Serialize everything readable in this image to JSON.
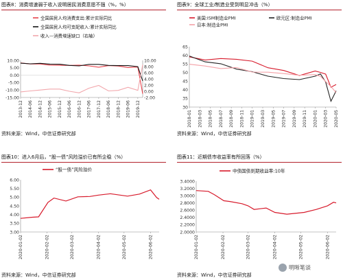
{
  "figures": [
    {
      "title": "图表8：消费增速弱于收入说明居民消费意愿不强（%，%）",
      "source": "资料来源：Wind，中信证券研究部"
    },
    {
      "title": "图表9：全球工业/制造业受到明显冲击（%）",
      "source": "资料来源：Wind，中信证券研究部"
    },
    {
      "title": "图表10：进入6月后，“股一债”风险溢价已有所企稳（%）",
      "source": "资料来源：Wind，中信证券研究部"
    },
    {
      "title": "图表11：近期债市收益率有所回落（%）",
      "source": "资料来源：Wind，中信证券研究部"
    }
  ],
  "watermark": "明晰笔谈",
  "chart_data": [
    {
      "type": "line",
      "x": [
        "2013-12",
        "2014-06",
        "2014-12",
        "2015-06",
        "2015-12",
        "2016-06",
        "2016-12",
        "2017-06",
        "2017-12",
        "2018-06",
        "2018-12",
        "2019-06",
        "2019-12",
        "2020-03"
      ],
      "series": [
        {
          "name": "全国居民人均消费支出:累计实际同比",
          "axis": "left",
          "color": "#e8414a",
          "values": [
            8.3,
            7.6,
            7.6,
            6.8,
            6.7,
            6.6,
            6.8,
            6.3,
            5.4,
            6.5,
            6.2,
            5.2,
            5.5,
            -12.5
          ]
        },
        {
          "name": "全国居民人均可支配收入:累计实际同比",
          "axis": "left",
          "color": "#111111",
          "values": [
            8.1,
            7.7,
            8.0,
            7.5,
            7.4,
            6.6,
            6.3,
            7.3,
            7.3,
            6.6,
            6.5,
            6.5,
            5.8,
            -3.9
          ]
        },
        {
          "name": "收入—消费增速缺口（右轴）",
          "axis": "right",
          "color": "#f2a6ab",
          "values": [
            -0.2,
            0.1,
            0.4,
            0.7,
            0.7,
            0.0,
            -0.5,
            1.0,
            1.9,
            0.1,
            0.3,
            1.3,
            0.3,
            8.6
          ]
        }
      ],
      "yleft_ticks": [
        "10.00",
        "5.00",
        "0.00",
        "-5.00",
        "-10.00",
        "-15.00"
      ],
      "yright_ticks": [
        "10.00",
        "8.00",
        "6.00",
        "4.00",
        "2.00",
        "0.00",
        "-2.00"
      ],
      "ylim_left": [
        -15,
        10
      ],
      "ylim_right": [
        -2,
        10
      ],
      "x_ticks": [
        "2013-12",
        "2014-06",
        "2014-12",
        "2015-06",
        "2015-12",
        "2016-06",
        "2016-12",
        "2017-06",
        "2017-12",
        "2018-06",
        "2018-12",
        "2019-06",
        "2019-12"
      ]
    },
    {
      "type": "line",
      "x": [
        "2018-01",
        "2018-04",
        "2018-07",
        "2018-10",
        "2019-01",
        "2019-04",
        "2019-07",
        "2019-10",
        "2020-01",
        "2020-02",
        "2020-03",
        "2020-04",
        "2020-05"
      ],
      "series": [
        {
          "name": "美国:ISM制造业PMI",
          "color": "#d7192a",
          "values": [
            59.1,
            57.3,
            58.1,
            57.7,
            56.6,
            52.8,
            51.2,
            48.3,
            50.9,
            50.1,
            49.1,
            41.5,
            43.1
          ]
        },
        {
          "name": "欧元区:制造业PMI",
          "color": "#222222",
          "values": [
            59.6,
            56.2,
            55.1,
            52.0,
            50.5,
            47.9,
            46.5,
            45.9,
            47.9,
            49.2,
            44.5,
            33.4,
            39.4
          ]
        },
        {
          "name": "日本:制造业PMI",
          "color": "#f4a0a6",
          "values": [
            54.8,
            53.8,
            52.3,
            52.9,
            50.3,
            50.2,
            49.4,
            48.4,
            48.8,
            47.8,
            44.8,
            41.9,
            38.4
          ]
        }
      ],
      "y_ticks": [
        "65",
        "60",
        "55",
        "50",
        "45",
        "40",
        "35",
        "30"
      ],
      "ylim": [
        30,
        65
      ],
      "x_ticks": [
        "2018-01",
        "2018-03",
        "2018-05",
        "2018-07",
        "2018-09",
        "2018-11",
        "2019-01",
        "2019-03",
        "2019-05",
        "2019-07",
        "2019-09",
        "2019-11",
        "2020-01",
        "2020-03",
        "2020-05"
      ]
    },
    {
      "type": "line",
      "x": [
        "2020-01-02",
        "2020-01-16",
        "2020-01-23",
        "2020-02-03",
        "2020-02-10",
        "2020-02-24",
        "2020-03-09",
        "2020-03-23",
        "2020-04-02",
        "2020-04-16",
        "2020-05-06",
        "2020-05-20",
        "2020-06-02",
        "2020-06-09",
        "2020-06-12"
      ],
      "series": [
        {
          "name": "“股一债”风险溢价",
          "color": "#d7192a",
          "values": [
            3.78,
            3.85,
            3.87,
            4.7,
            4.95,
            4.78,
            5.02,
            5.04,
            5.12,
            5.2,
            5.06,
            5.18,
            5.42,
            4.98,
            4.88
          ]
        }
      ],
      "y_ticks": [
        "6.00",
        "5.50",
        "5.00",
        "4.50",
        "4.00",
        "3.50",
        "3.00"
      ],
      "ylim": [
        3.0,
        6.0
      ],
      "x_ticks": [
        "2020-01-02",
        "2020-02-02",
        "2020-03-02",
        "2020-04-02",
        "2020-05-02",
        "2020-06-02"
      ]
    },
    {
      "type": "line",
      "x": [
        "2020-01-02",
        "2020-01-16",
        "2020-01-23",
        "2020-02-03",
        "2020-02-10",
        "2020-02-24",
        "2020-03-02",
        "2020-03-09",
        "2020-03-23",
        "2020-04-02",
        "2020-04-16",
        "2020-05-06",
        "2020-05-20",
        "2020-06-02",
        "2020-06-09",
        "2020-06-12"
      ],
      "series": [
        {
          "name": "中债国债到期收益率:10年",
          "color": "#d7192a",
          "values": [
            3.14,
            3.12,
            3.03,
            2.86,
            2.84,
            2.78,
            2.72,
            2.62,
            2.66,
            2.54,
            2.49,
            2.54,
            2.62,
            2.72,
            2.82,
            2.8
          ]
        }
      ],
      "y_ticks": [
        "3.4000",
        "3.2000",
        "3.0000",
        "2.8000",
        "2.6000",
        "2.4000",
        "2.2000",
        "2.0000"
      ],
      "ylim": [
        2.0,
        3.4
      ],
      "x_ticks": [
        "2020-01-02",
        "2020-02-02",
        "2020-03-02",
        "2020-04-02",
        "2020-05-02",
        "2020-06-02"
      ]
    }
  ]
}
